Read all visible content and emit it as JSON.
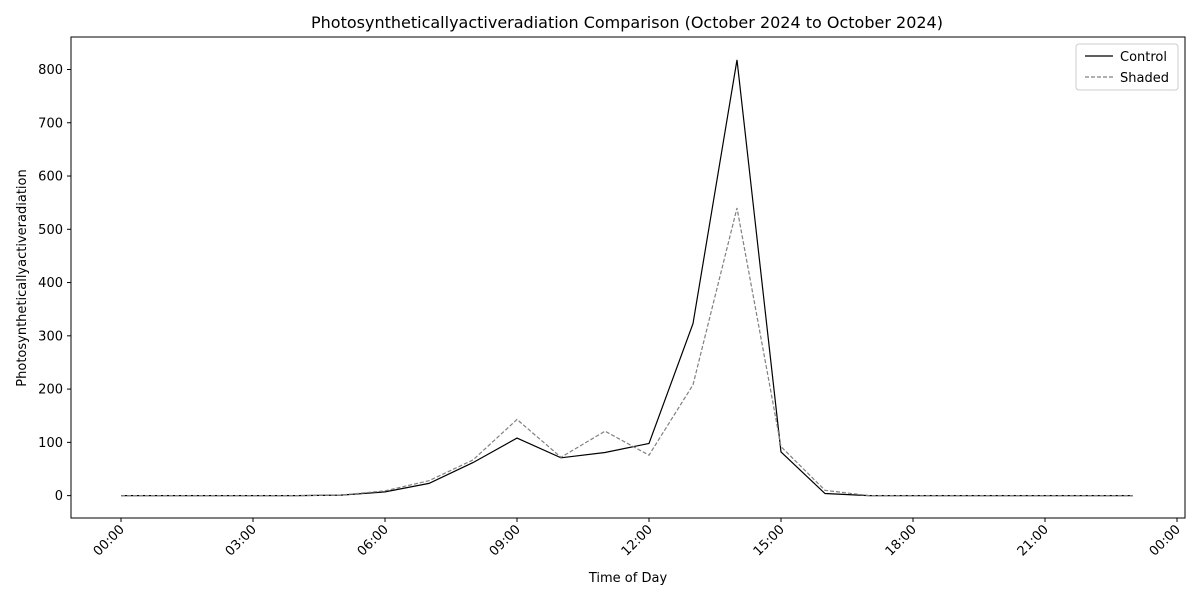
{
  "chart_data": {
    "type": "line",
    "title": "Photosyntheticallyactiveradiation Comparison (October 2024 to October 2024)",
    "xlabel": "Time of Day",
    "ylabel": "Photosyntheticallyactiveradiation",
    "x": [
      "00:00",
      "01:00",
      "02:00",
      "03:00",
      "04:00",
      "05:00",
      "06:00",
      "07:00",
      "08:00",
      "09:00",
      "10:00",
      "11:00",
      "12:00",
      "13:00",
      "14:00",
      "15:00",
      "16:00",
      "17:00",
      "18:00",
      "19:00",
      "20:00",
      "21:00",
      "22:00",
      "23:00"
    ],
    "x_ticks": [
      "00:00",
      "03:00",
      "06:00",
      "09:00",
      "12:00",
      "15:00",
      "18:00",
      "21:00",
      "00:00"
    ],
    "y_ticks": [
      "0",
      "100",
      "200",
      "300",
      "400",
      "500",
      "600",
      "700",
      "800"
    ],
    "ylim": [
      -42,
      861
    ],
    "grid": false,
    "legend_position": "top-right",
    "series": [
      {
        "name": "Control",
        "color": "#000000",
        "style": "solid",
        "values": [
          0,
          0,
          0,
          0,
          0,
          1,
          7,
          23,
          62,
          108,
          71,
          81,
          98,
          323,
          818,
          82,
          4,
          0,
          0,
          0,
          0,
          0,
          0,
          0
        ]
      },
      {
        "name": "Shaded",
        "color": "#808080",
        "style": "dashed",
        "values": [
          0,
          0,
          0,
          0,
          0,
          1,
          9,
          28,
          67,
          143,
          72,
          121,
          76,
          208,
          540,
          92,
          10,
          0,
          0,
          0,
          0,
          0,
          0,
          0
        ]
      }
    ]
  }
}
